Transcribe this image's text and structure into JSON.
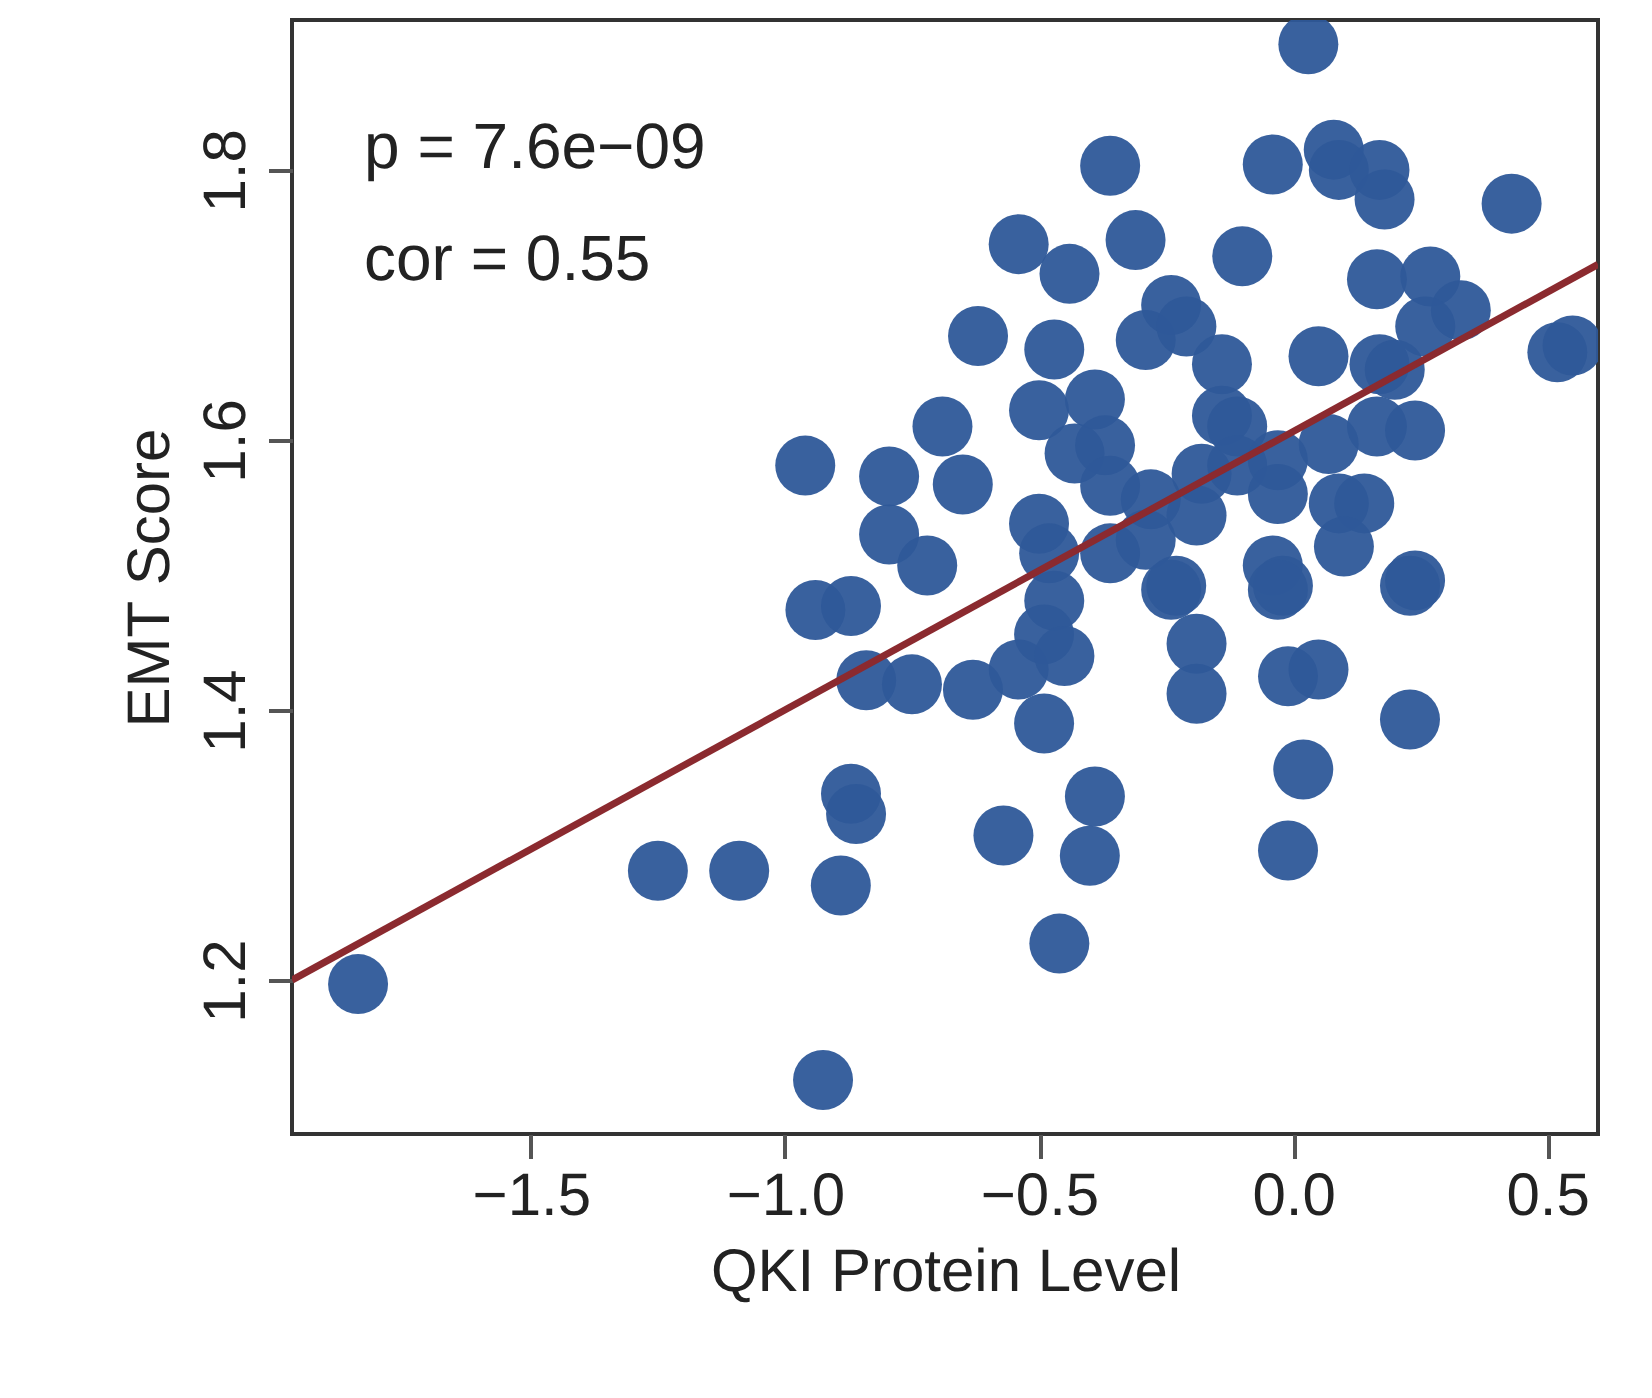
{
  "chart_data": {
    "type": "scatter",
    "xlabel": "QKI Protein Level",
    "ylabel": "EMT Score",
    "annotations": [
      "p =  7.6e−09",
      "cor =  0.55"
    ],
    "xlim": [
      -1.97,
      0.6
    ],
    "ylim": [
      1.086,
      1.911
    ],
    "xticks": [
      {
        "value": -1.5,
        "label": "−1.5"
      },
      {
        "value": -1.0,
        "label": "−1.0"
      },
      {
        "value": -0.5,
        "label": "−0.5"
      },
      {
        "value": 0,
        "label": "0.0"
      },
      {
        "value": 0.5,
        "label": "0.5"
      }
    ],
    "yticks": [
      1.2,
      1.4,
      1.6,
      1.8
    ],
    "grid": false,
    "series": [
      {
        "type": "scatter",
        "marker": "circle",
        "color": "#2e5899",
        "x": [
          0.03,
          -0.36,
          -0.04,
          0.08,
          0.09,
          0.17,
          0.18,
          0.43,
          -0.54,
          -0.31,
          -0.44,
          -0.1,
          0.165,
          0.27,
          0.33,
          0.26,
          -0.24,
          -0.29,
          -0.21,
          -0.62,
          -0.47,
          -0.14,
          0.05,
          0.17,
          0.2,
          0.52,
          0.55,
          -0.69,
          -0.5,
          -0.39,
          -0.14,
          -0.11,
          0.165,
          0.24,
          0.07,
          -0.43,
          -0.37,
          -0.65,
          -0.36,
          -0.28,
          -0.18,
          -0.11,
          -0.03,
          -0.03,
          -0.5,
          -0.19,
          0.09,
          0.14,
          -0.48,
          -0.36,
          -0.29,
          0.1,
          -0.23,
          -0.04,
          -0.02,
          0.24,
          -0.72,
          -0.47,
          -0.49,
          -0.54,
          -0.45,
          -0.63,
          -0.49,
          -0.24,
          -0.03,
          0.23,
          -0.19,
          -0.19,
          -0.01,
          0.05,
          0.23,
          0.02,
          -0.39,
          -0.57,
          -0.4,
          -0.01,
          -0.46,
          -0.94,
          -0.87,
          -0.84,
          -0.75,
          -0.87,
          -0.86,
          -1.25,
          -1.09,
          -0.89,
          -1.84,
          -0.925,
          -0.96,
          -0.795,
          -0.795
        ],
        "values": [
          1.893,
          1.803,
          1.804,
          1.815,
          1.8,
          1.8,
          1.778,
          1.775,
          1.745,
          1.748,
          1.723,
          1.736,
          1.719,
          1.721,
          1.696,
          1.684,
          1.7,
          1.674,
          1.684,
          1.677,
          1.667,
          1.656,
          1.662,
          1.656,
          1.652,
          1.665,
          1.67,
          1.61,
          1.622,
          1.63,
          1.618,
          1.61,
          1.61,
          1.607,
          1.597,
          1.59,
          1.596,
          1.567,
          1.566,
          1.556,
          1.575,
          1.581,
          1.585,
          1.56,
          1.538,
          1.544,
          1.553,
          1.553,
          1.516,
          1.516,
          1.526,
          1.521,
          1.492,
          1.507,
          1.492,
          1.496,
          1.507,
          1.481,
          1.456,
          1.43,
          1.44,
          1.415,
          1.39,
          1.489,
          1.489,
          1.492,
          1.449,
          1.412,
          1.425,
          1.43,
          1.393,
          1.356,
          1.336,
          1.307,
          1.292,
          1.296,
          1.227,
          1.474,
          1.477,
          1.422,
          1.419,
          1.338,
          1.323,
          1.281,
          1.281,
          1.27,
          1.197,
          1.126,
          1.581,
          1.573,
          1.53
        ]
      },
      {
        "type": "line",
        "marker": "none",
        "color": "#8b2a2f",
        "x": [
          -1.97,
          0.6
        ],
        "values": [
          1.2,
          1.73
        ]
      }
    ]
  }
}
